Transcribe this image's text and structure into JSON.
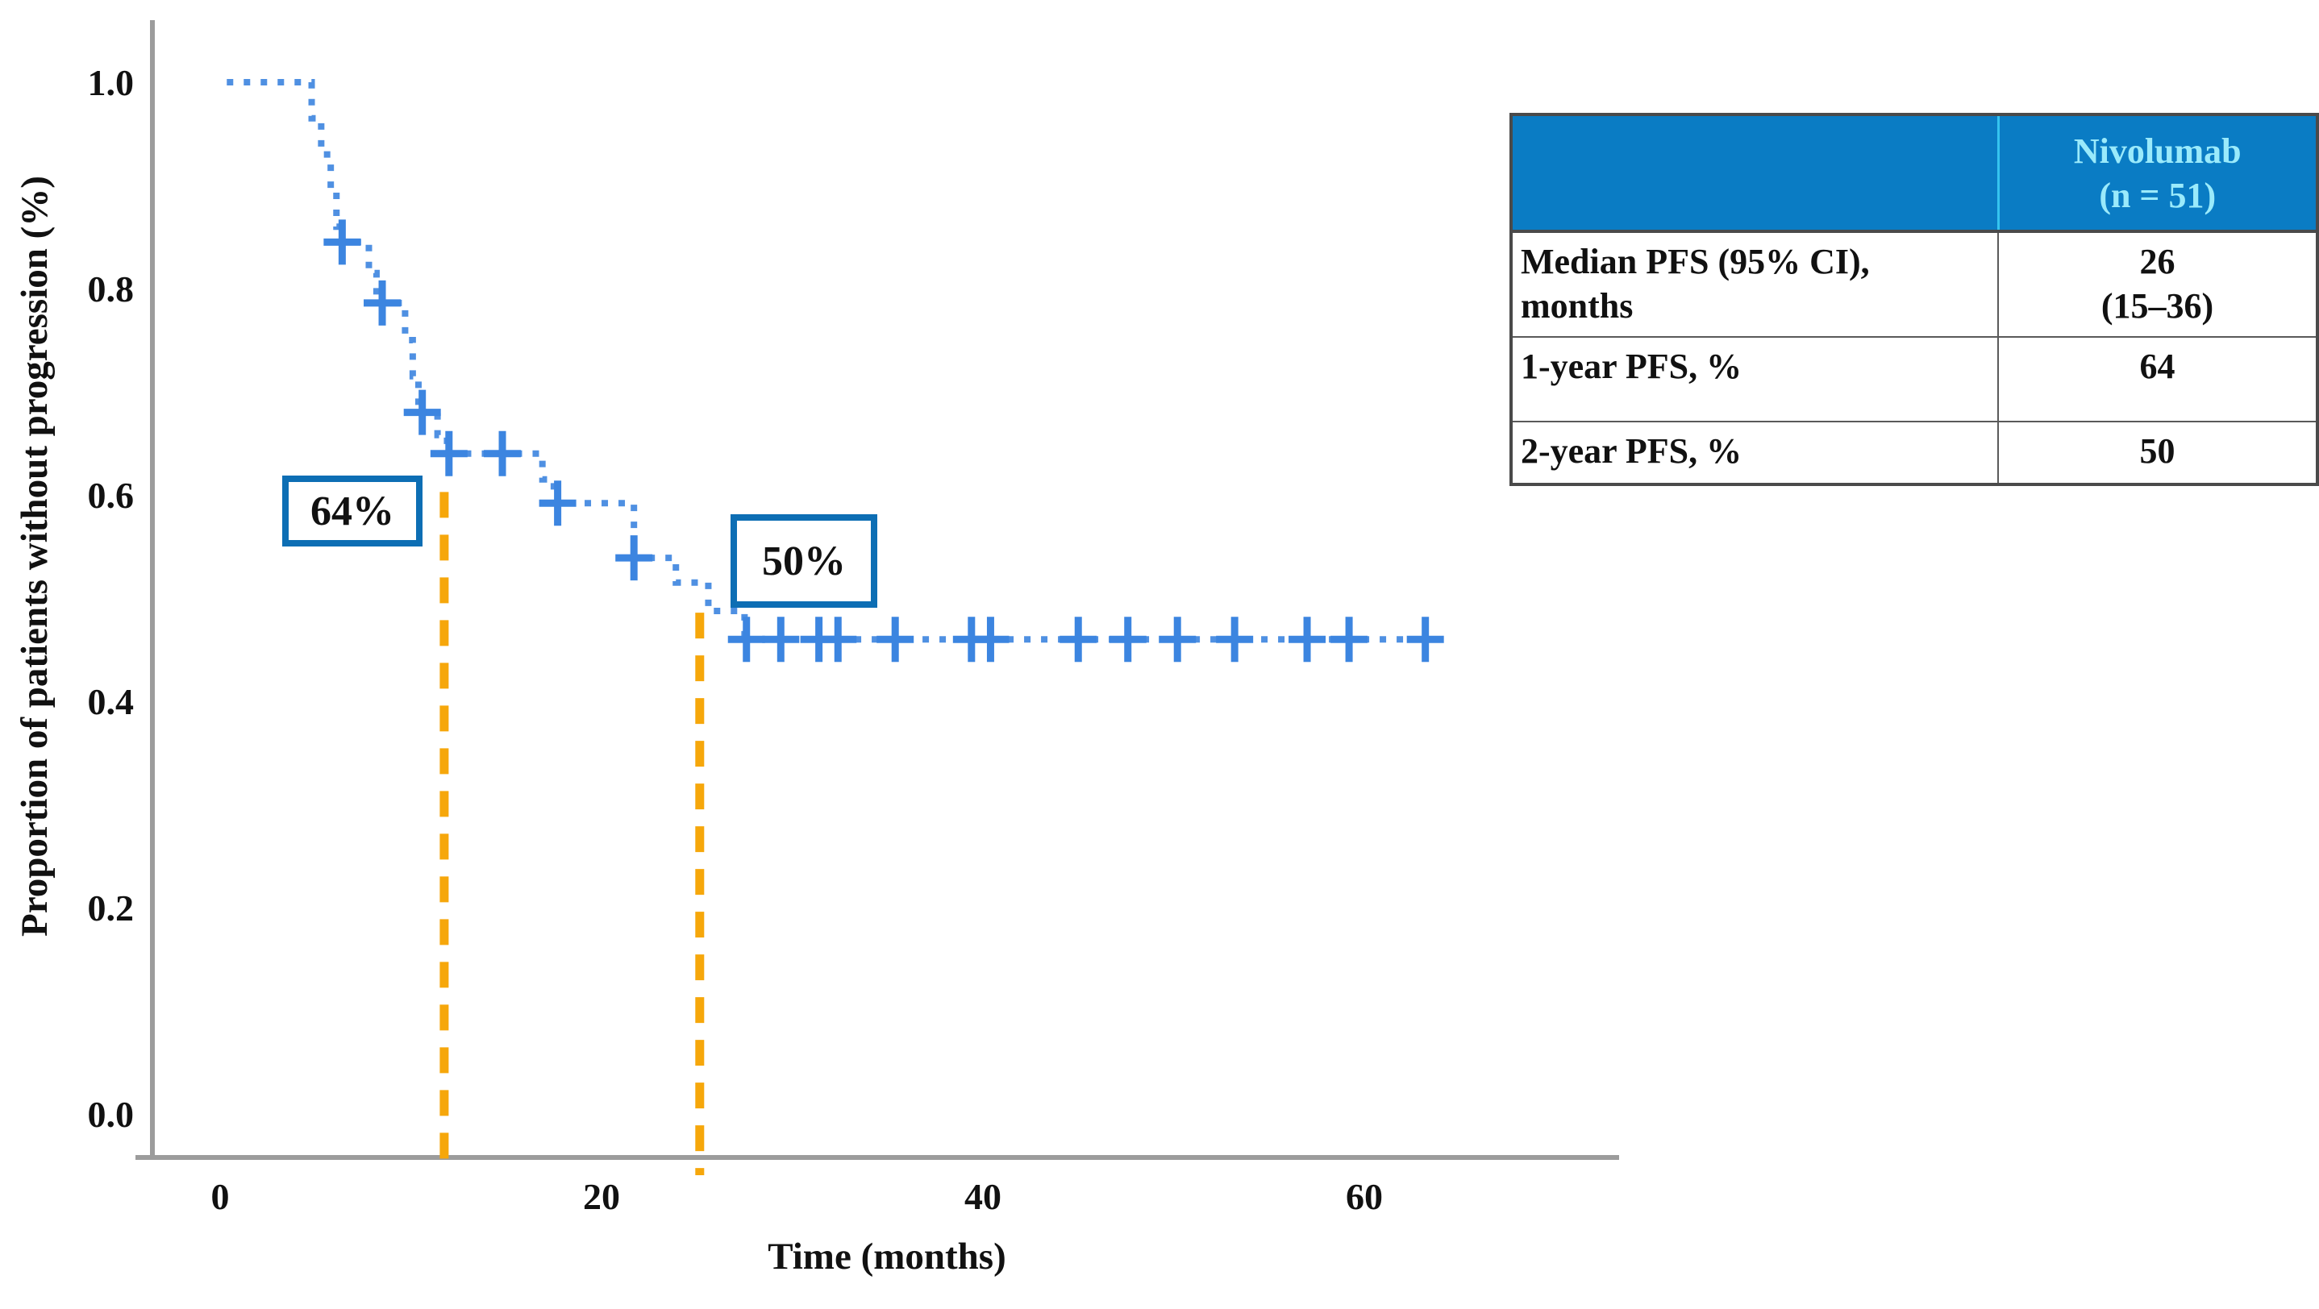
{
  "chart_data": {
    "type": "line",
    "subtype": "kaplan-meier-step",
    "title": "",
    "xlabel": "Time (months)",
    "ylabel": "Proportion of patients without progression (%)",
    "x_ticks": [
      "0",
      "20",
      "40",
      "60"
    ],
    "y_ticks": [
      "1.0",
      "0.8",
      "0.6",
      "0.4",
      "0.2",
      "0.0"
    ],
    "xlim": [
      0,
      68
    ],
    "ylim": [
      0,
      1.05
    ],
    "grid": "off",
    "legend": "none",
    "series": [
      {
        "name": "Nivolumab",
        "steps": [
          [
            0.35,
            1.0
          ],
          [
            4.8,
            0.965
          ],
          [
            5.3,
            0.93
          ],
          [
            5.8,
            0.895
          ],
          [
            6.1,
            0.86
          ],
          [
            6.4,
            0.845
          ],
          [
            7.8,
            0.815
          ],
          [
            8.2,
            0.786
          ],
          [
            9.7,
            0.75
          ],
          [
            10.1,
            0.715
          ],
          [
            10.4,
            0.68
          ],
          [
            11.4,
            0.658
          ],
          [
            11.9,
            0.64
          ],
          [
            16.9,
            0.615
          ],
          [
            17.5,
            0.592
          ],
          [
            21.7,
            0.539
          ],
          [
            23.9,
            0.515
          ],
          [
            25.6,
            0.4875
          ],
          [
            27.5,
            0.46
          ]
        ],
        "end_month": 63.5,
        "censor_marks": [
          [
            6.4,
            0.845
          ],
          [
            8.5,
            0.786
          ],
          [
            10.6,
            0.68
          ],
          [
            12.0,
            0.64
          ],
          [
            14.8,
            0.64
          ],
          [
            17.7,
            0.592
          ],
          [
            21.7,
            0.539
          ],
          [
            27.6,
            0.46
          ],
          [
            29.4,
            0.46
          ],
          [
            31.4,
            0.46
          ],
          [
            32.4,
            0.46
          ],
          [
            35.4,
            0.46
          ],
          [
            39.4,
            0.46
          ],
          [
            40.4,
            0.46
          ],
          [
            45.0,
            0.46
          ],
          [
            47.6,
            0.46
          ],
          [
            50.2,
            0.46
          ],
          [
            53.2,
            0.46
          ],
          [
            57.0,
            0.46
          ],
          [
            59.2,
            0.46
          ],
          [
            63.2,
            0.46
          ]
        ]
      }
    ],
    "reference_lines": [
      {
        "x": 11.75,
        "y_top": 0.62,
        "label": "64%"
      },
      {
        "x": 25.15,
        "y_top": 0.503,
        "label": "50%"
      }
    ],
    "colors": {
      "curve": "#4f90e2",
      "censor": "#3c85e0",
      "reference": "#f6a70b",
      "annotation_border": "#0d6eb4",
      "axis": "#9c9c9c",
      "table_header_bg": "#0a7cc4",
      "table_header_text": "#9aeafb"
    }
  },
  "table": {
    "header": {
      "drug_line1": "Nivolumab",
      "drug_line2": "(n = 51)"
    },
    "rows": [
      {
        "label_line1": "Median PFS (95% CI),",
        "label_line2": "months",
        "value_line1": "26",
        "value_line2": "(15–36)"
      },
      {
        "label_line1": "1-year PFS, %",
        "label_line2": "",
        "value_line1": "64",
        "value_line2": ""
      },
      {
        "label_line1": "2-year PFS, %",
        "label_line2": "",
        "value_line1": "50",
        "value_line2": ""
      }
    ]
  }
}
